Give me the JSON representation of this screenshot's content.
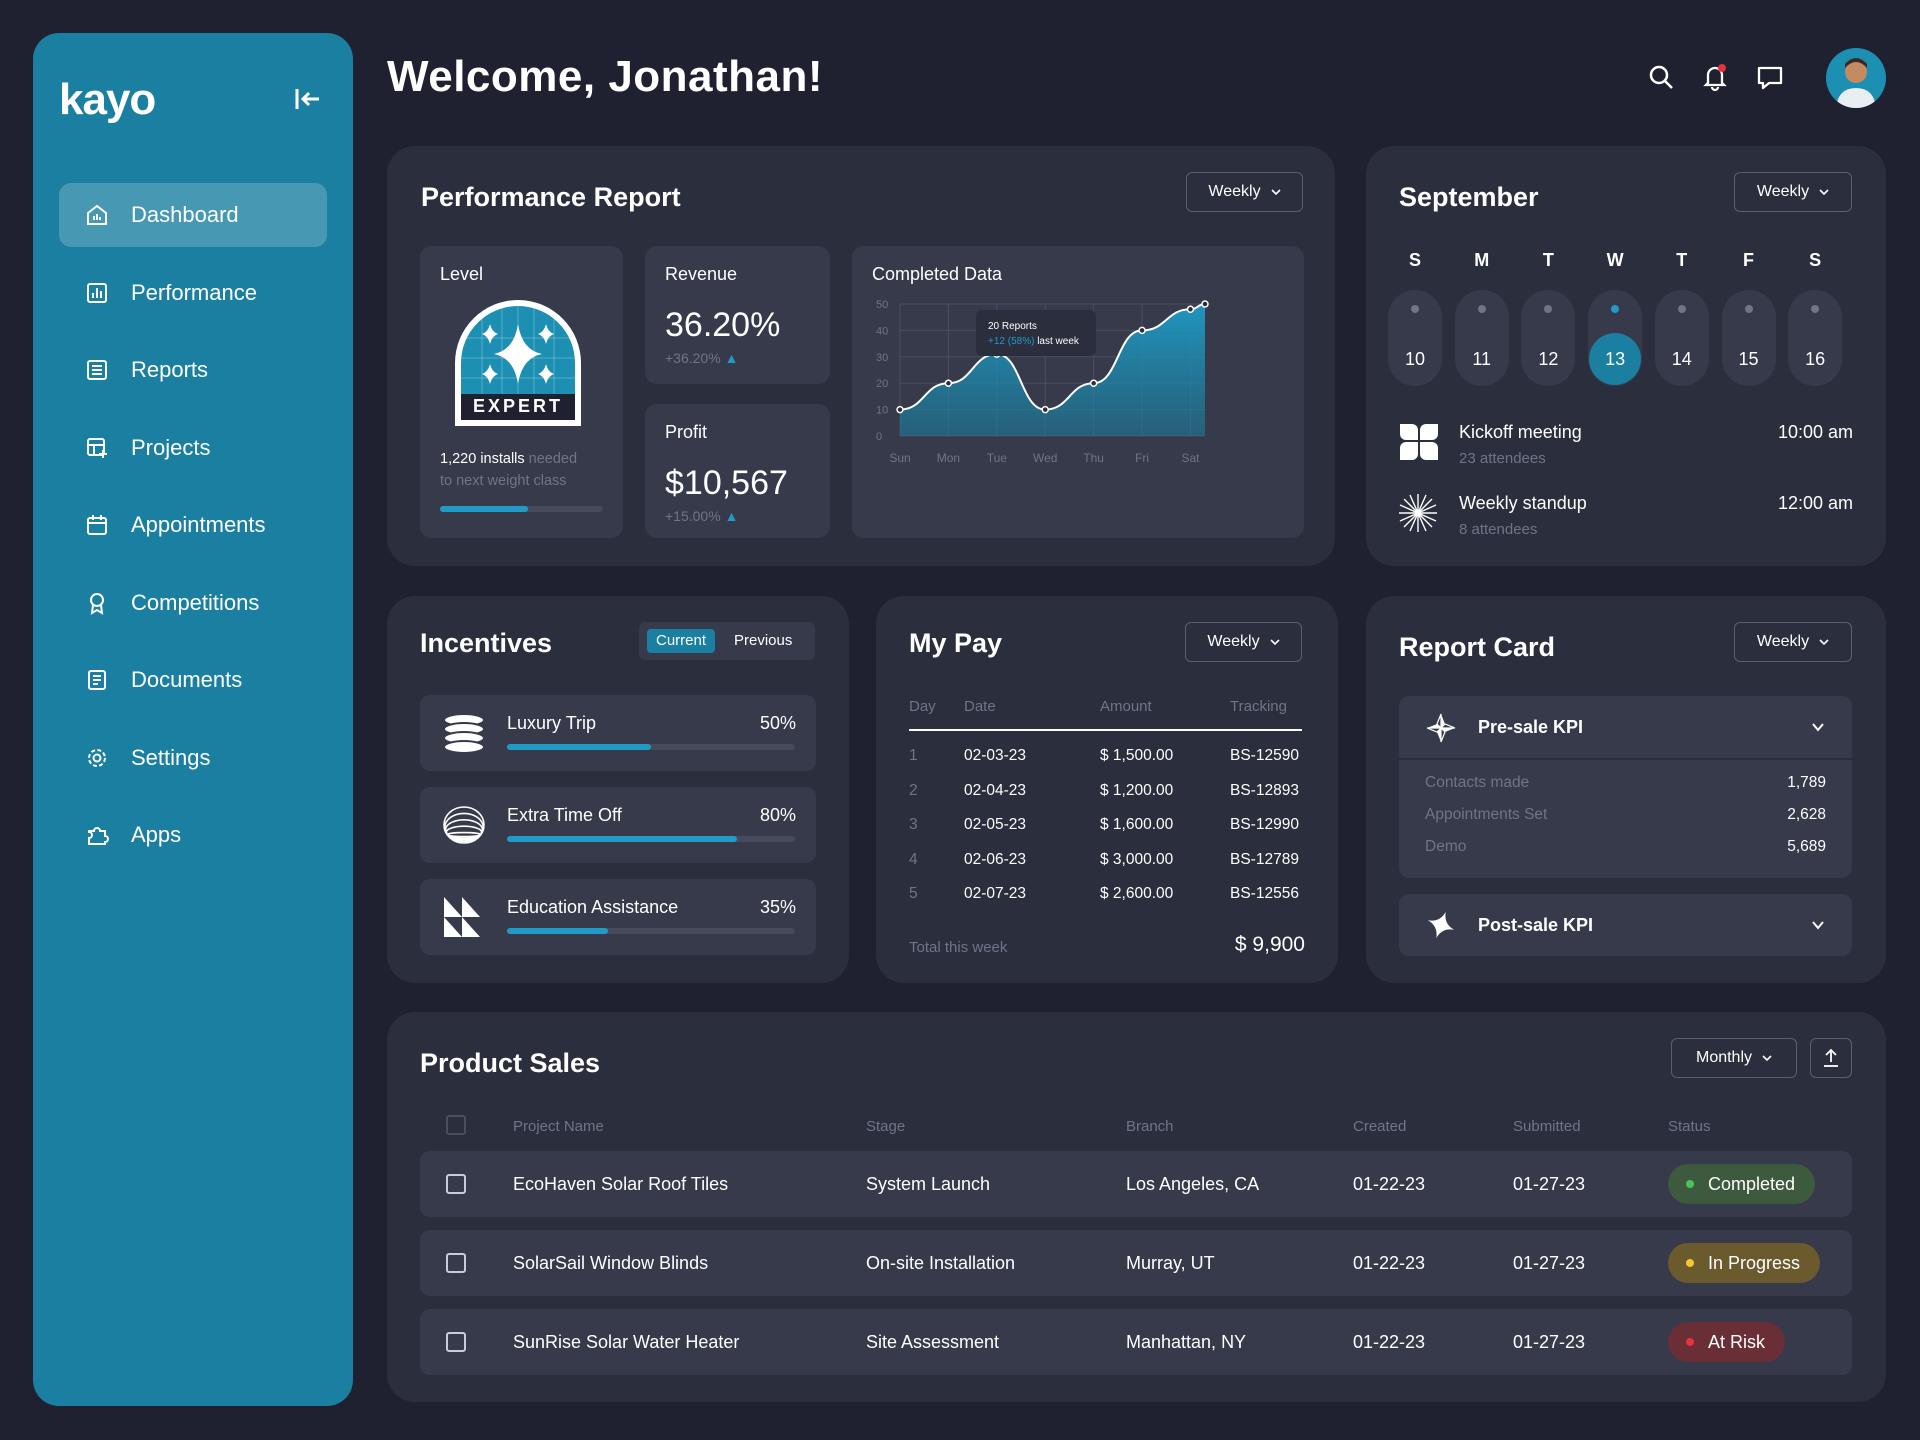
{
  "app": {
    "logo": "kayo"
  },
  "sidebar": {
    "items": [
      {
        "label": "Dashboard",
        "icon": "dashboard-icon",
        "active": true
      },
      {
        "label": "Performance",
        "icon": "performance-icon"
      },
      {
        "label": "Reports",
        "icon": "reports-icon"
      },
      {
        "label": "Projects",
        "icon": "projects-icon"
      },
      {
        "label": "Appointments",
        "icon": "calendar-icon"
      },
      {
        "label": "Competitions",
        "icon": "award-icon"
      },
      {
        "label": "Documents",
        "icon": "document-icon"
      },
      {
        "label": "Settings",
        "icon": "gear-icon"
      },
      {
        "label": "Apps",
        "icon": "puzzle-icon"
      }
    ]
  },
  "header": {
    "welcome": "Welcome, Jonathan!"
  },
  "colors": {
    "accent": "#1a7fa0",
    "bg": "#1f2130",
    "card": "#2b2e3d",
    "completed": "#3f9a4a",
    "in_progress": "#e0b431",
    "at_risk": "#d8313a"
  },
  "performance": {
    "title": "Performance Report",
    "period": "Weekly",
    "level": {
      "label": "Level",
      "badge": "EXPERT",
      "installs": "1,220 installs",
      "needed": " needed",
      "next": "to next weight class",
      "progress": 0.54
    },
    "revenue": {
      "label": "Revenue",
      "value": "36.20%",
      "change": "+36.20%"
    },
    "profit": {
      "label": "Profit",
      "value": "$10,567",
      "change": "+15.00%"
    },
    "completed": {
      "label": "Completed Data",
      "tooltip_title": "20 Reports",
      "tooltip_delta": "+12 (58%)",
      "tooltip_suffix": " last week"
    }
  },
  "chart_data": {
    "type": "area",
    "title": "Completed Data",
    "categories": [
      "Sun",
      "Mon",
      "Tue",
      "Wed",
      "Thu",
      "Fri",
      "Sat"
    ],
    "x": [
      0,
      1,
      2,
      3,
      4,
      5,
      6,
      6.3
    ],
    "values": [
      10,
      20,
      31,
      10,
      20,
      40,
      48,
      50
    ],
    "yticks": [
      0,
      10,
      20,
      30,
      40,
      50
    ],
    "ylim": [
      0,
      50
    ],
    "grid": true
  },
  "calendar": {
    "month": "September",
    "period": "Weekly",
    "days": [
      {
        "dow": "S",
        "date": "10"
      },
      {
        "dow": "M",
        "date": "11"
      },
      {
        "dow": "T",
        "date": "12"
      },
      {
        "dow": "W",
        "date": "13",
        "selected": true
      },
      {
        "dow": "T",
        "date": "14"
      },
      {
        "dow": "F",
        "date": "15"
      },
      {
        "dow": "S",
        "date": "16"
      }
    ],
    "events": [
      {
        "title": "Kickoff meeting",
        "attendees": "23 attendees",
        "time": "10:00 am"
      },
      {
        "title": "Weekly standup",
        "attendees": "8 attendees",
        "time": "12:00 am"
      }
    ]
  },
  "incentives": {
    "title": "Incentives",
    "tabs": [
      "Current",
      "Previous"
    ],
    "items": [
      {
        "name": "Luxury Trip",
        "pct": "50%",
        "value": 0.5
      },
      {
        "name": "Extra Time Off",
        "pct": "80%",
        "value": 0.8
      },
      {
        "name": "Education Assistance",
        "pct": "35%",
        "value": 0.35
      }
    ]
  },
  "pay": {
    "title": "My Pay",
    "period": "Weekly",
    "headers": [
      "Day",
      "Date",
      "Amount",
      "Tracking"
    ],
    "rows": [
      {
        "day": "1",
        "date": "02-03-23",
        "amount": "$ 1,500.00",
        "tracking": "BS-12590"
      },
      {
        "day": "2",
        "date": "02-04-23",
        "amount": "$ 1,200.00",
        "tracking": "BS-12893"
      },
      {
        "day": "3",
        "date": "02-05-23",
        "amount": "$ 1,600.00",
        "tracking": "BS-12990"
      },
      {
        "day": "4",
        "date": "02-06-23",
        "amount": "$ 3,000.00",
        "tracking": "BS-12789"
      },
      {
        "day": "5",
        "date": "02-07-23",
        "amount": "$ 2,600.00",
        "tracking": "BS-12556"
      }
    ],
    "total_label": "Total this week",
    "total": "$ 9,900"
  },
  "report_card": {
    "title": "Report Card",
    "period": "Weekly",
    "presale": {
      "title": "Pre-sale KPI",
      "rows": [
        {
          "label": "Contacts made",
          "value": "1,789"
        },
        {
          "label": "Appointments Set",
          "value": "2,628"
        },
        {
          "label": "Demo",
          "value": "5,689"
        }
      ]
    },
    "postsale": {
      "title": "Post-sale KPI"
    }
  },
  "sales": {
    "title": "Product Sales",
    "period": "Monthly",
    "headers": [
      "Project Name",
      "Stage",
      "Branch",
      "Created",
      "Submitted",
      "Status"
    ],
    "rows": [
      {
        "name": "EcoHaven Solar Roof Tiles",
        "stage": "System Launch",
        "branch": "Los Angeles, CA",
        "created": "01-22-23",
        "submitted": "01-27-23",
        "status": "Completed"
      },
      {
        "name": "SolarSail Window Blinds",
        "stage": "On-site Installation",
        "branch": "Murray, UT",
        "created": "01-22-23",
        "submitted": "01-27-23",
        "status": "In Progress"
      },
      {
        "name": "SunRise Solar Water Heater",
        "stage": "Site Assessment",
        "branch": "Manhattan, NY",
        "created": "01-22-23",
        "submitted": "01-27-23",
        "status": "At Risk"
      }
    ]
  }
}
